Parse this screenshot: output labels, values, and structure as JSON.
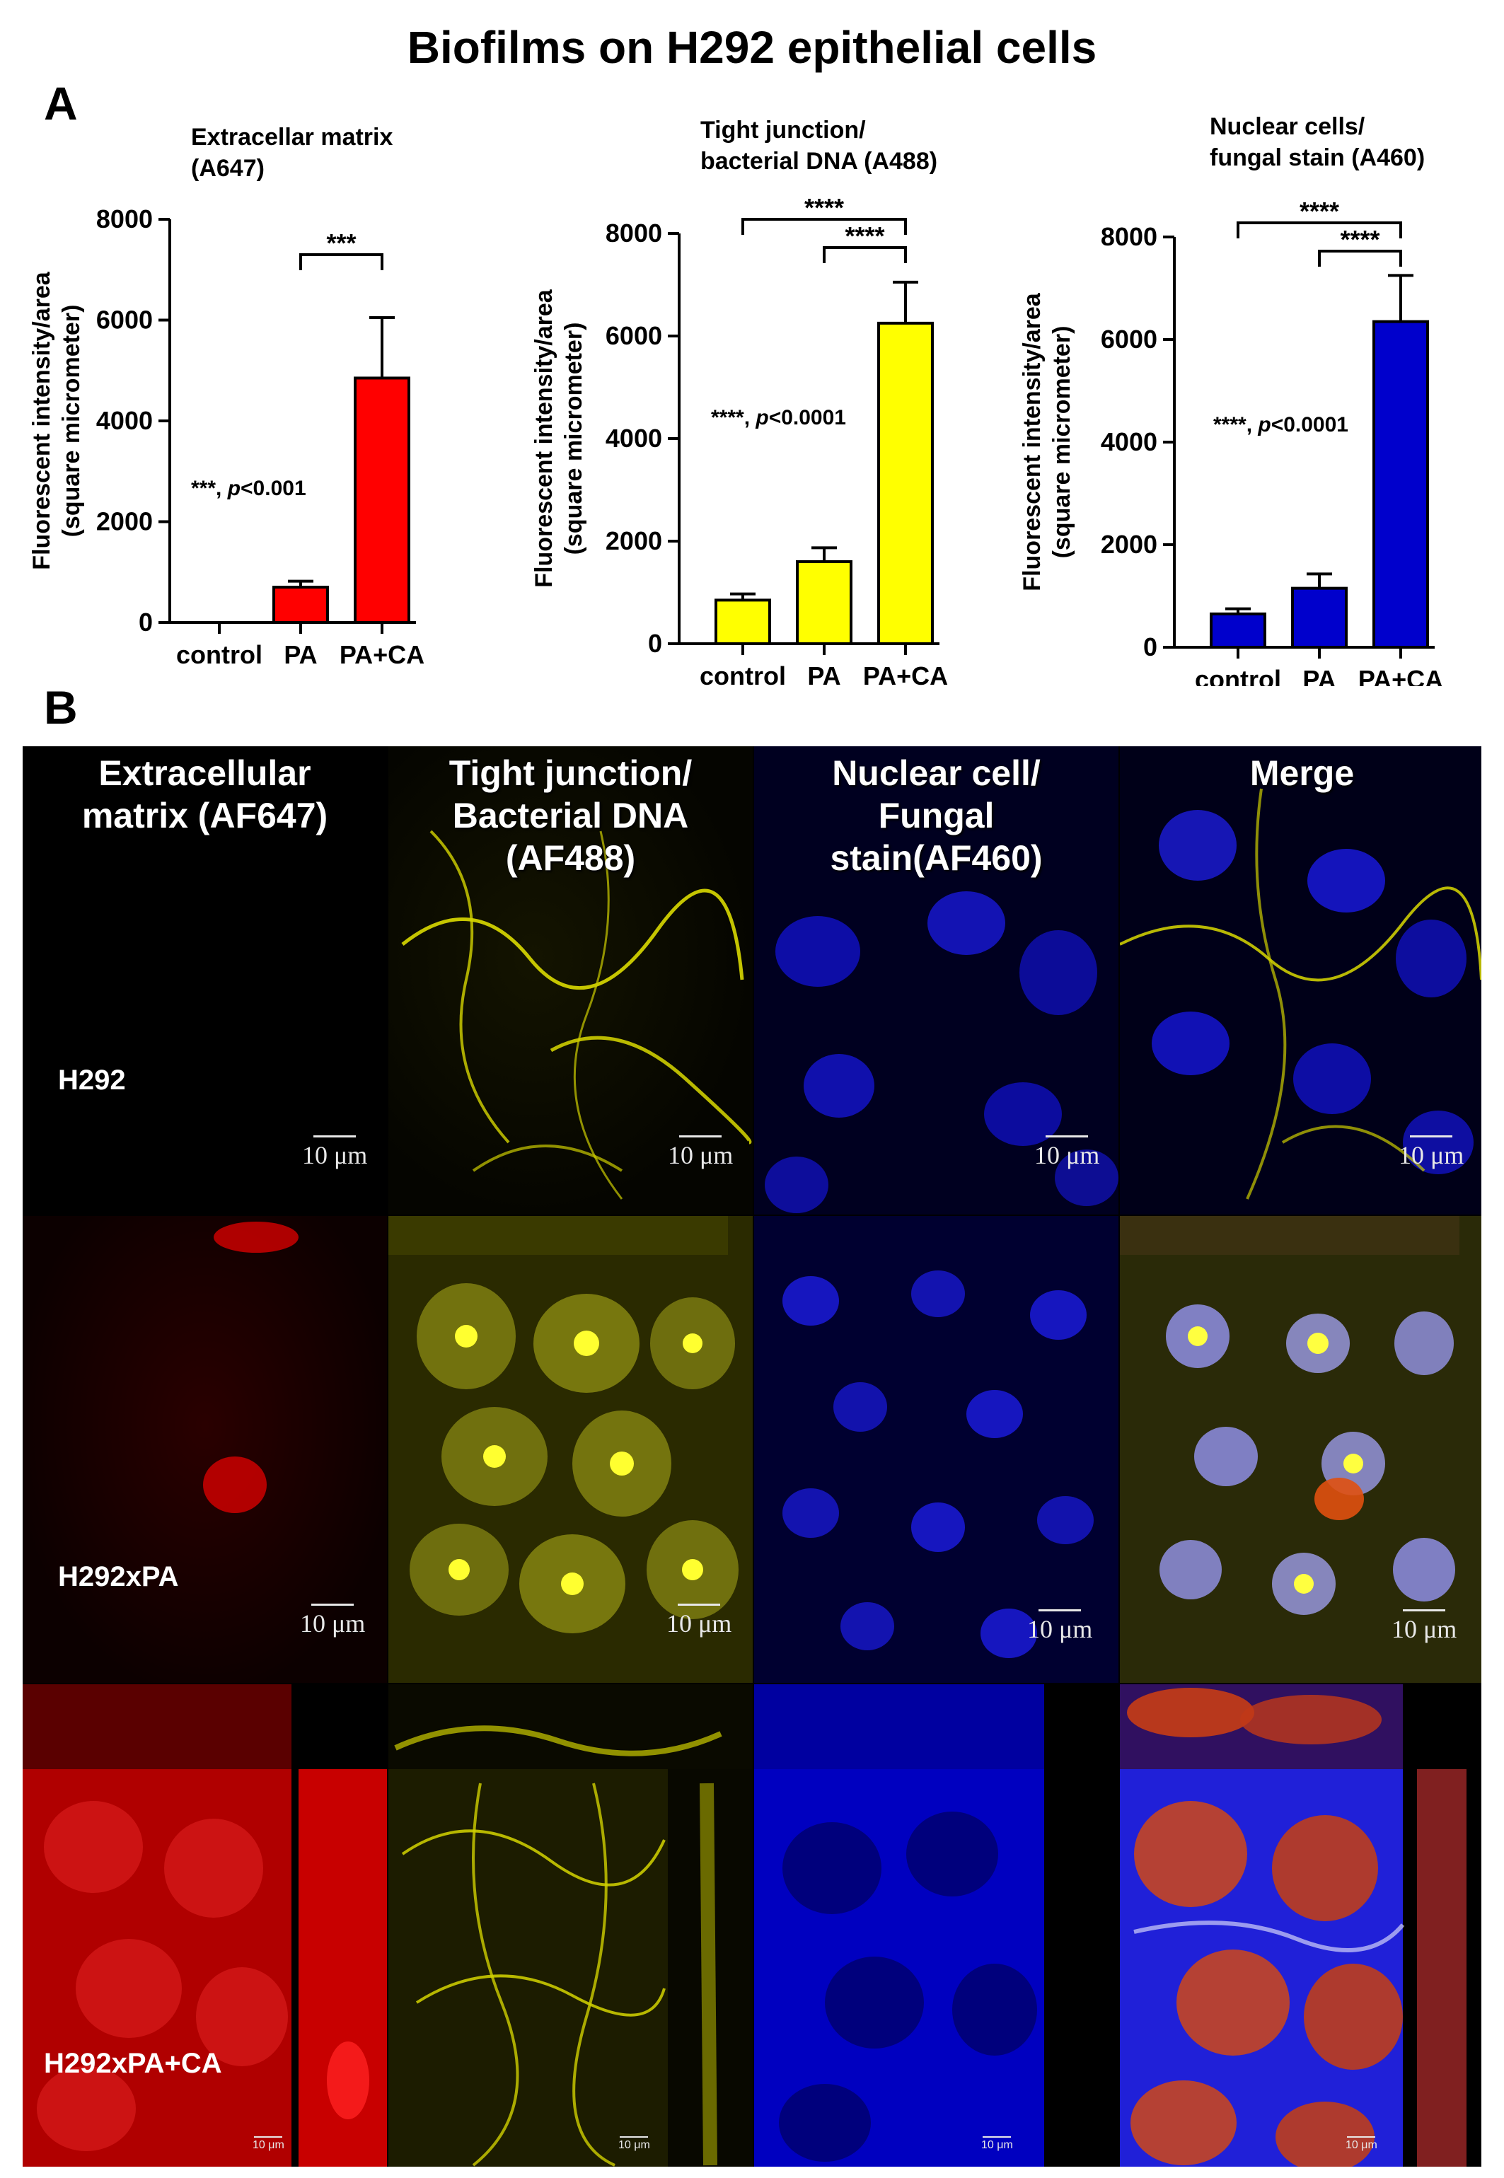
{
  "figure": {
    "title": "Biofilms on H292 epithelial cells",
    "panel_a_letter": "A",
    "panel_b_letter": "B"
  },
  "chart_data": [
    {
      "type": "bar",
      "title": "Extracellar matrix (A647)",
      "title_lines": [
        "Extracellar matrix",
        "(A647)"
      ],
      "ylabel_lines": [
        "Fluorescent intensity/area",
        "(square micrometer)"
      ],
      "categories": [
        "control",
        "PA",
        "PA+CA"
      ],
      "values": [
        0,
        700,
        4850
      ],
      "errors": [
        0,
        120,
        1200
      ],
      "ylim": [
        0,
        8000
      ],
      "yticks": [
        0,
        2000,
        4000,
        6000,
        8000
      ],
      "bar_color": "#ff0000",
      "stat_text": "***, ",
      "stat_p": "p",
      "stat_value": "<0.001",
      "brackets": [
        {
          "from": 1,
          "to": 2,
          "label": "***"
        }
      ]
    },
    {
      "type": "bar",
      "title": "Tight junction/ bacterial DNA (A488)",
      "title_lines": [
        "Tight junction/",
        "bacterial DNA (A488)"
      ],
      "ylabel_lines": [
        "Fluorescent intensity/area",
        "(square micrometer)"
      ],
      "categories": [
        "control",
        "PA",
        "PA+CA"
      ],
      "values": [
        850,
        1600,
        6250
      ],
      "errors": [
        120,
        270,
        800
      ],
      "ylim": [
        0,
        8000
      ],
      "yticks": [
        0,
        2000,
        4000,
        6000,
        8000
      ],
      "bar_color": "#ffff00",
      "stat_text": "****, ",
      "stat_p": "p",
      "stat_value": "<0.0001",
      "brackets": [
        {
          "from": 0,
          "to": 2,
          "label": "****"
        },
        {
          "from": 1,
          "to": 2,
          "label": "****"
        }
      ]
    },
    {
      "type": "bar",
      "title": "Nuclear cells/ fungal stain (A460)",
      "title_lines": [
        "Nuclear cells/",
        "fungal stain  (A460)"
      ],
      "ylabel_lines": [
        "Fluorescent intensity/area",
        "(square micrometer)"
      ],
      "categories": [
        "control",
        "PA",
        "PA+CA"
      ],
      "values": [
        650,
        1150,
        6350
      ],
      "errors": [
        100,
        280,
        900
      ],
      "ylim": [
        0,
        8000
      ],
      "yticks": [
        0,
        2000,
        4000,
        6000,
        8000
      ],
      "bar_color": "#0000cc",
      "stat_text": "****, ",
      "stat_p": "p",
      "stat_value": "<0.0001",
      "brackets": [
        {
          "from": 0,
          "to": 2,
          "label": "****"
        },
        {
          "from": 1,
          "to": 2,
          "label": "****"
        }
      ]
    }
  ],
  "microscopy": {
    "columns": [
      {
        "title": "Extracellular\nmatrix (AF647)",
        "color": "red"
      },
      {
        "title": "Tight junction/\nBacterial DNA\n(AF488)",
        "color": "yellow"
      },
      {
        "title": "Nuclear cell/\nFungal\nstain(AF460)",
        "color": "blue"
      },
      {
        "title": "Merge",
        "color": "merge"
      }
    ],
    "rows": [
      "H292",
      "H292xPA",
      "H292xPA+CA"
    ],
    "scale_bar_label": "10 μm"
  }
}
